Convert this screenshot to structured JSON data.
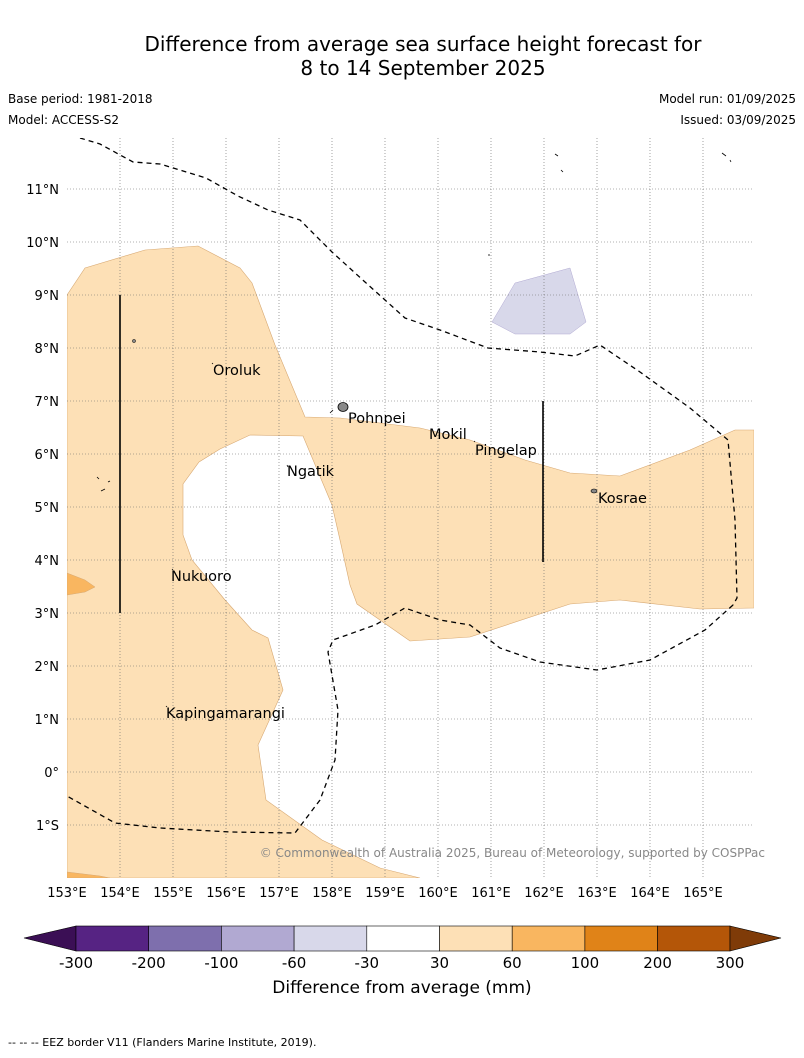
{
  "title_line1": "Difference from average sea surface height forecast for",
  "title_line2": "8 to 14 September 2025",
  "base_period": "Base period: 1981-2018",
  "model": "Model: ACCESS-S2",
  "model_run": "Model run: 01/09/2025",
  "issued": "Issued: 03/09/2025",
  "copyright": "© Commonwealth of Australia 2025, Bureau of Meteorology, supported by COSPPac",
  "lat_labels": [
    "11°N",
    "10°N",
    "9°N",
    "8°N",
    "7°N",
    "6°N",
    "5°N",
    "4°N",
    "3°N",
    "2°N",
    "1°N",
    "0°",
    "1°S"
  ],
  "lon_labels": [
    "153°E",
    "154°E",
    "155°E",
    "156°E",
    "157°E",
    "158°E",
    "159°E",
    "160°E",
    "161°E",
    "162°E",
    "163°E",
    "164°E",
    "165°E"
  ],
  "places": [
    "Oroluk",
    "Pohnpei",
    "Mokil",
    "Pingelap",
    "Ngatik",
    "Kosrae",
    "Nukuoro",
    "Kapingamarangi"
  ],
  "colorbar": {
    "title": "Difference from average (mm)",
    "ticks": [
      "-300",
      "-200",
      "-100",
      "-60",
      "-30",
      "30",
      "60",
      "100",
      "200",
      "300"
    ],
    "colors": [
      "#3b0f55",
      "#562383",
      "#7e6fad",
      "#b1a9d2",
      "#d8d8ea",
      "#ffffff",
      "#fde0b6",
      "#f9b660",
      "#e08318",
      "#b45608",
      "#7f3b08"
    ]
  },
  "footer": "--  --  -- EEZ border V11 (Flanders Marine Institute, 2019)."
}
